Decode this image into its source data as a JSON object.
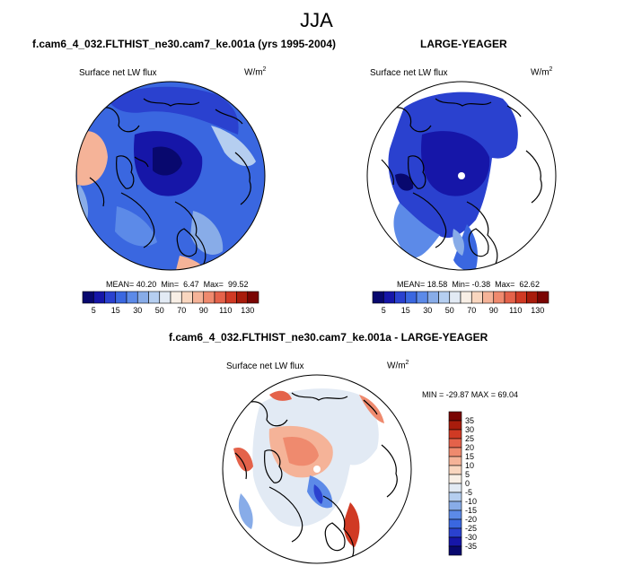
{
  "figure": {
    "title": "JJA"
  },
  "colors": {
    "abs_scale": [
      "#08086e",
      "#1616a8",
      "#2a41cf",
      "#3a67e0",
      "#5c8ae8",
      "#88ace8",
      "#b5cef0",
      "#e2eaf4",
      "#f8efe6",
      "#f9d6bf",
      "#f5b398",
      "#ef8a6e",
      "#e4624a",
      "#d03a24",
      "#a81c0c",
      "#7a0503"
    ],
    "diff_scale": [
      "#08086e",
      "#1616a8",
      "#2a41cf",
      "#3a67e0",
      "#5c8ae8",
      "#88ace8",
      "#b5cef0",
      "#e2eaf4",
      "#f8efe6",
      "#f9d6bf",
      "#f5b398",
      "#ef8a6e",
      "#e4624a",
      "#d03a24",
      "#a81c0c",
      "#7a0503"
    ],
    "land_outline": "#000000",
    "missing": "#ffffff"
  },
  "chart_data": [
    {
      "type": "heatmap",
      "panel": "top-left",
      "title": "f.cam6_4_032.FLTHIST_ne30.cam7_ke.001a (yrs 1995-2004)",
      "subtitle_left": "Surface net LW flux",
      "units": "W/m",
      "units_sup": "2",
      "stats": {
        "mean_label": "MEAN=",
        "mean": "40.20",
        "min_label": "Min=",
        "min": "6.47",
        "max_label": "Max=",
        "max": "99.52"
      },
      "colorbar": {
        "orientation": "horizontal",
        "labels": [
          "5",
          "15",
          "30",
          "50",
          "70",
          "90",
          "110",
          "130"
        ]
      }
    },
    {
      "type": "heatmap",
      "panel": "top-right",
      "title": "LARGE-YEAGER",
      "subtitle_left": "Surface net LW flux",
      "units": "W/m",
      "units_sup": "2",
      "stats": {
        "mean_label": "MEAN=",
        "mean": "18.58",
        "min_label": "Min=",
        "min": "-0.38",
        "max_label": "Max=",
        "max": "62.62"
      },
      "colorbar": {
        "orientation": "horizontal",
        "labels": [
          "5",
          "15",
          "30",
          "50",
          "70",
          "90",
          "110",
          "130"
        ]
      }
    },
    {
      "type": "heatmap",
      "panel": "bottom",
      "title": "f.cam6_4_032.FLTHIST_ne30.cam7_ke.001a - LARGE-YEAGER",
      "subtitle_left": "Surface net LW flux",
      "units": "W/m",
      "units_sup": "2",
      "stats_text": "MIN = -29.87 MAX = 69.04",
      "colorbar": {
        "orientation": "vertical",
        "labels": [
          "35",
          "30",
          "25",
          "20",
          "15",
          "10",
          "5",
          "0",
          "-5",
          "-10",
          "-15",
          "-20",
          "-25",
          "-30",
          "-35"
        ]
      }
    }
  ]
}
